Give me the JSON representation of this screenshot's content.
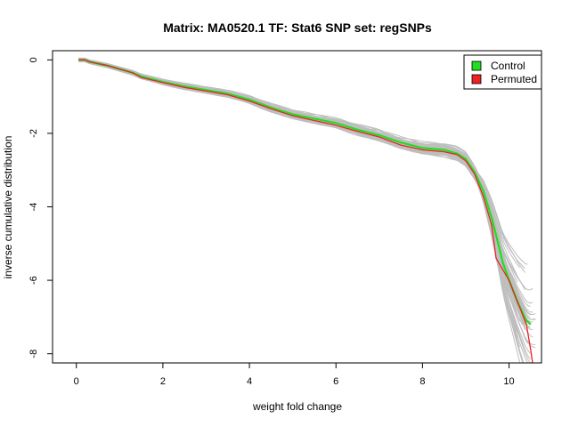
{
  "chart_data": {
    "type": "line",
    "title": "Matrix: MA0520.1 TF: Stat6 SNP set: regSNPs",
    "xlabel": "weight fold change",
    "ylabel": "inverse cumulative distribution",
    "xlim": [
      -0.55,
      10.75
    ],
    "ylim": [
      -8.25,
      0.25
    ],
    "x_ticks": [
      0,
      2,
      4,
      6,
      8,
      10
    ],
    "y_ticks": [
      0,
      -2,
      -4,
      -6,
      -8
    ],
    "x_tick_labels": [
      "0",
      "2",
      "4",
      "6",
      "8",
      "10"
    ],
    "y_tick_labels": [
      "0",
      "-2",
      "-4",
      "-6",
      "-8"
    ],
    "grid": false,
    "legend_position": "top-right",
    "background_series": {
      "description_color": "#bebebe",
      "count": 60
    },
    "series": [
      {
        "name": "Control",
        "color": "#22dd22",
        "x": [
          0.05,
          0.2,
          0.3,
          0.5,
          0.7,
          1.0,
          1.3,
          1.5,
          2.0,
          2.5,
          3.0,
          3.5,
          4.0,
          4.5,
          5.0,
          5.5,
          6.0,
          6.5,
          7.0,
          7.5,
          8.0,
          8.5,
          8.8,
          9.0,
          9.2,
          9.4,
          9.6,
          9.75,
          9.85,
          10.0,
          10.2,
          10.4,
          10.5
        ],
        "y": [
          0,
          0,
          -0.05,
          -0.1,
          -0.15,
          -0.25,
          -0.35,
          -0.45,
          -0.6,
          -0.72,
          -0.82,
          -0.92,
          -1.08,
          -1.3,
          -1.48,
          -1.6,
          -1.72,
          -1.9,
          -2.05,
          -2.25,
          -2.4,
          -2.45,
          -2.55,
          -2.7,
          -3.05,
          -3.55,
          -4.3,
          -5.0,
          -5.5,
          -6.0,
          -6.6,
          -7.1,
          -7.2
        ]
      },
      {
        "name": "Permuted",
        "color": "#ee2222",
        "x": [
          0.05,
          0.2,
          0.3,
          0.5,
          0.7,
          1.0,
          1.3,
          1.5,
          2.0,
          2.5,
          3.0,
          3.5,
          4.0,
          4.5,
          5.0,
          5.5,
          6.0,
          6.5,
          7.0,
          7.5,
          8.0,
          8.5,
          8.8,
          9.0,
          9.2,
          9.4,
          9.6,
          9.7,
          9.8,
          9.9,
          10.0,
          10.2,
          10.4,
          10.5,
          10.55
        ],
        "y": [
          0,
          0,
          -0.05,
          -0.1,
          -0.15,
          -0.25,
          -0.35,
          -0.48,
          -0.62,
          -0.75,
          -0.85,
          -0.95,
          -1.12,
          -1.33,
          -1.52,
          -1.65,
          -1.78,
          -1.95,
          -2.1,
          -2.32,
          -2.45,
          -2.5,
          -2.58,
          -2.75,
          -3.1,
          -3.7,
          -4.5,
          -5.4,
          -5.6,
          -5.8,
          -6.0,
          -6.6,
          -7.2,
          -7.9,
          -8.3
        ]
      }
    ]
  }
}
